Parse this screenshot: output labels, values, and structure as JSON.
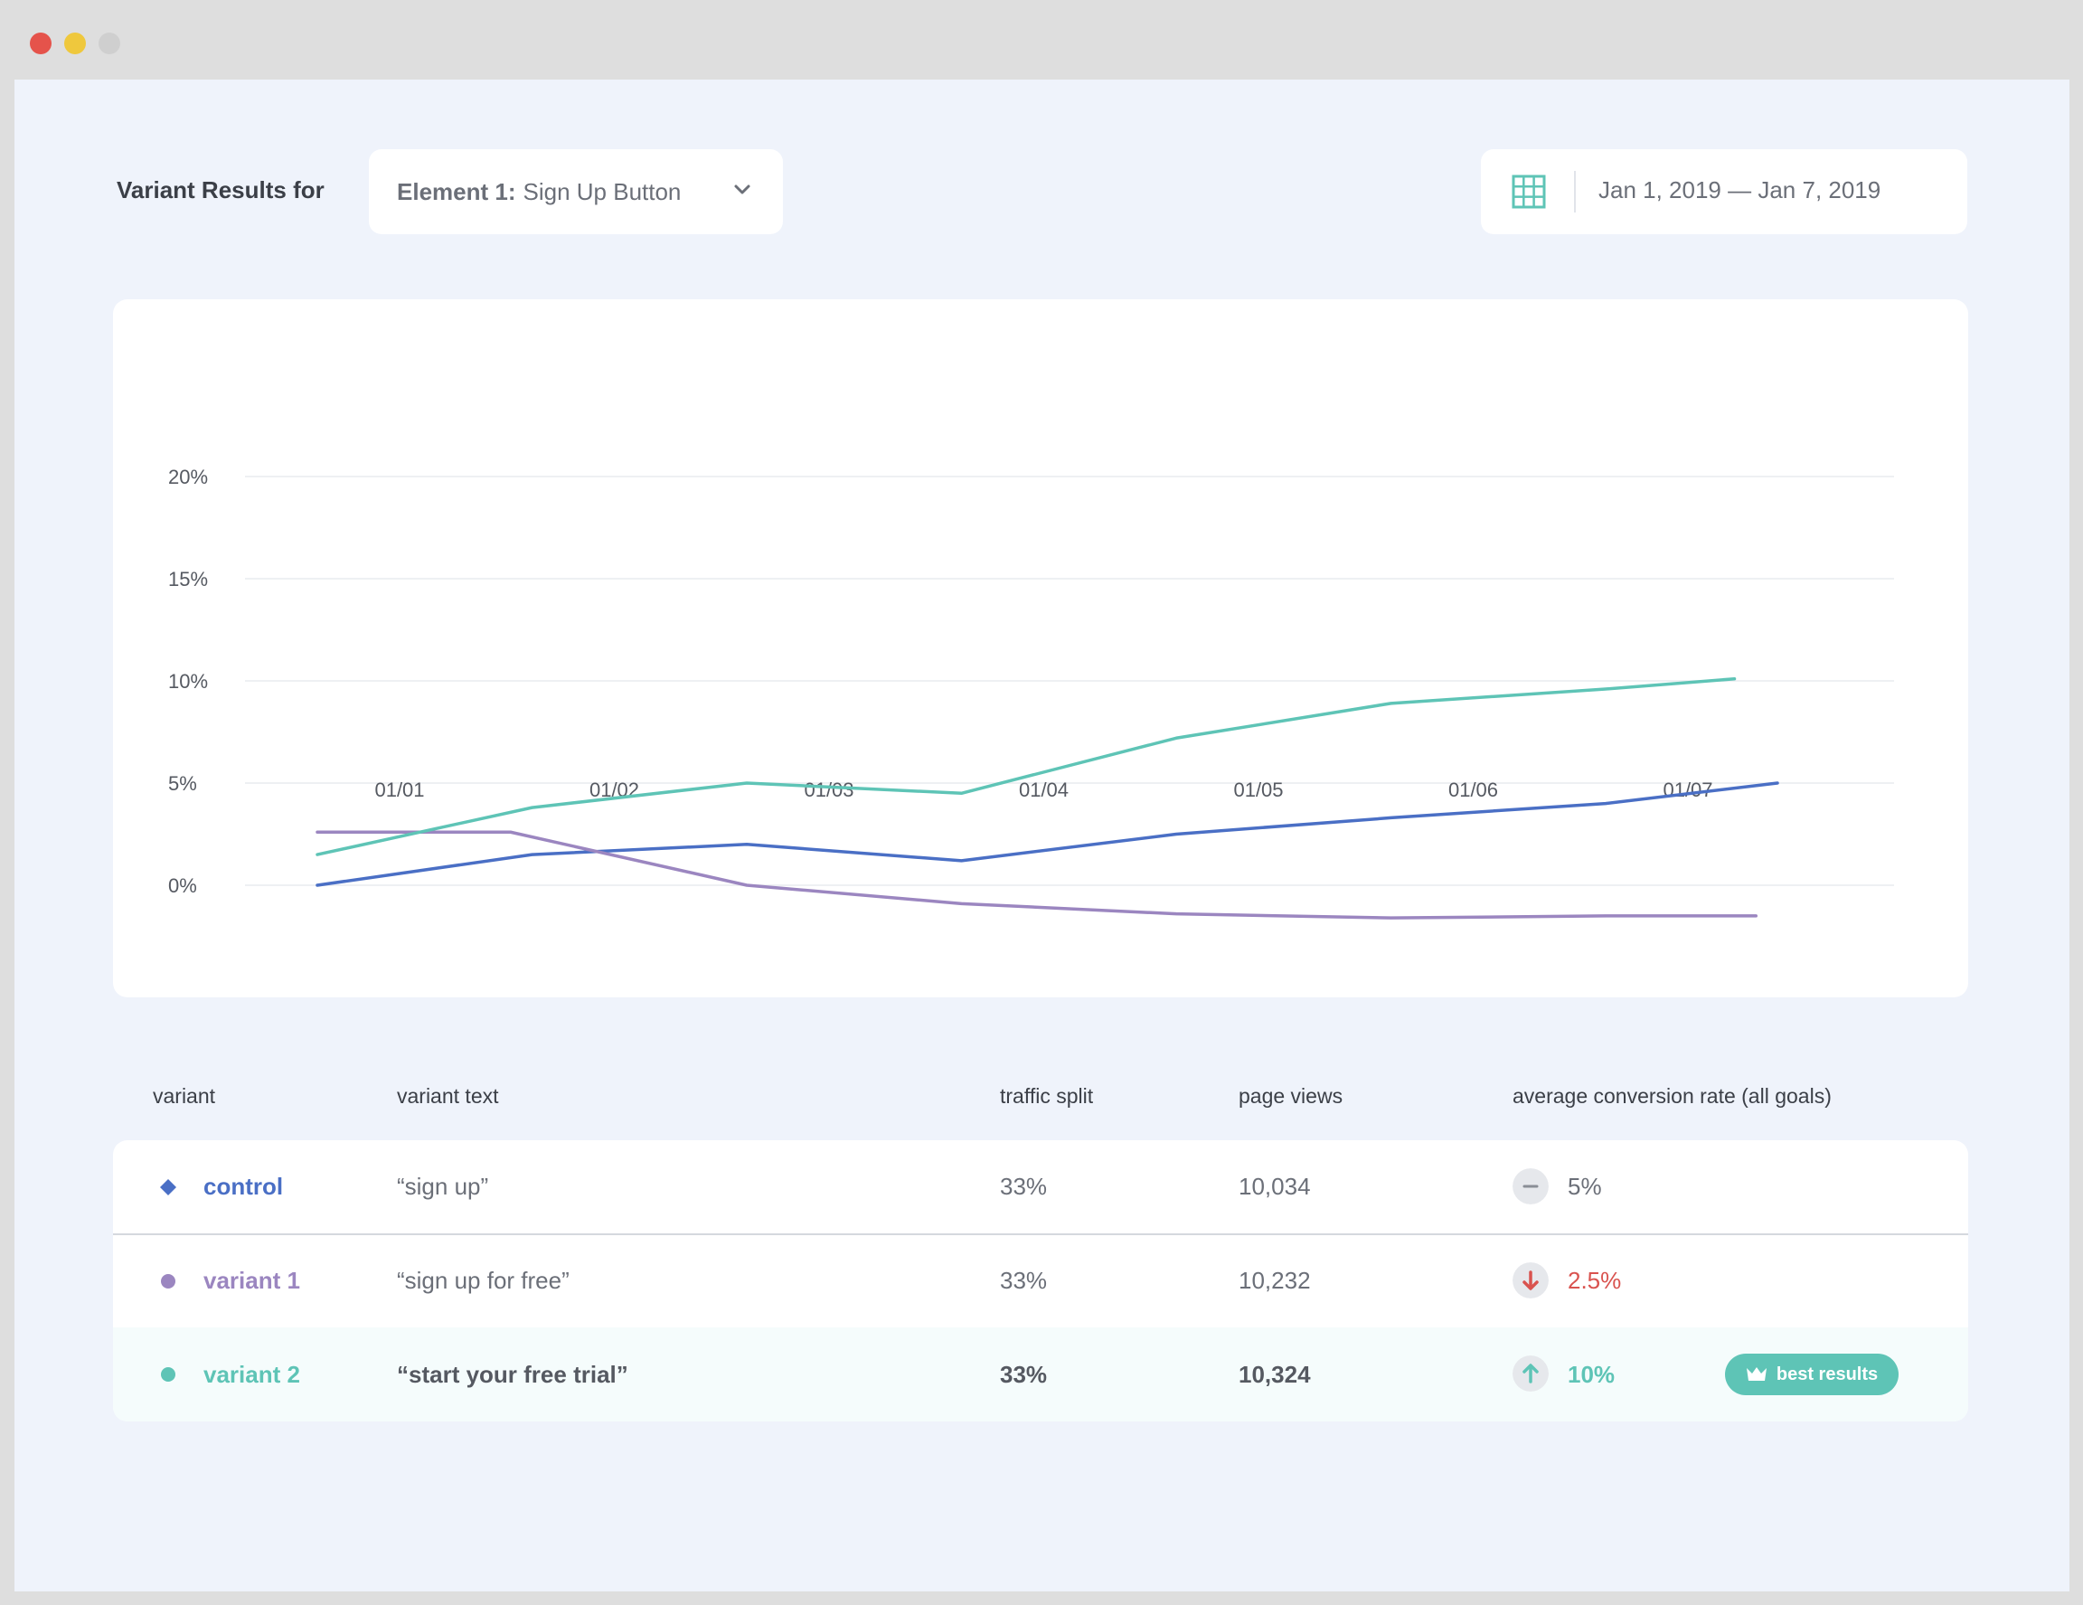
{
  "header": {
    "results_label": "Variant Results for",
    "element_select": {
      "prefix": "Element 1:",
      "value": "Sign Up Button"
    },
    "date_range": "Jan 1, 2019 — Jan 7, 2019"
  },
  "colors": {
    "control": "#4a6fc5",
    "variant1": "#9b86c0",
    "variant2": "#5ec4b6",
    "negative": "#d9534f",
    "background": "#eff3fb"
  },
  "chart_data": {
    "type": "line",
    "categories": [
      "01/01",
      "01/02",
      "01/03",
      "01/04",
      "01/05",
      "01/06",
      "01/07"
    ],
    "y_ticks": [
      "20%",
      "15%",
      "10%",
      "5%",
      "0%"
    ],
    "ylim": [
      0,
      20
    ],
    "grid": true,
    "legend": "none",
    "series": [
      {
        "key": "control",
        "x": [
          0.0,
          1.0,
          2.0,
          3.0,
          4.0,
          5.0,
          6.0,
          6.8
        ],
        "values": [
          0,
          1.5,
          2.0,
          1.2,
          2.5,
          3.3,
          4.0,
          5.0
        ]
      },
      {
        "key": "variant1",
        "x": [
          0.0,
          0.9,
          2.0,
          3.0,
          4.0,
          5.0,
          6.0,
          6.7
        ],
        "values": [
          2.6,
          2.6,
          0,
          -0.9,
          -1.4,
          -1.6,
          -1.5,
          -1.5
        ]
      },
      {
        "key": "variant2",
        "x": [
          0.0,
          1.0,
          2.0,
          3.0,
          4.0,
          5.0,
          6.0,
          6.6
        ],
        "values": [
          1.5,
          3.8,
          5.0,
          4.5,
          7.2,
          8.9,
          9.6,
          10.1
        ]
      }
    ]
  },
  "table": {
    "headers": {
      "variant": "variant",
      "variant_text": "variant text",
      "traffic_split": "traffic split",
      "page_views": "page views",
      "conversion": "average conversion rate (all goals)"
    },
    "rows": [
      {
        "name": "control",
        "text": "“sign up”",
        "split": "33%",
        "views": "10,034",
        "rate": "5%",
        "trend": "neutral",
        "marker": "diamond"
      },
      {
        "name": "variant 1",
        "text": "“sign up for free”",
        "split": "33%",
        "views": "10,232",
        "rate": "2.5%",
        "trend": "down",
        "marker": "circle"
      },
      {
        "name": "variant 2",
        "text": "“start your free trial”",
        "split": "33%",
        "views": "10,324",
        "rate": "10%",
        "trend": "up",
        "marker": "circle",
        "badge": "best results"
      }
    ]
  }
}
